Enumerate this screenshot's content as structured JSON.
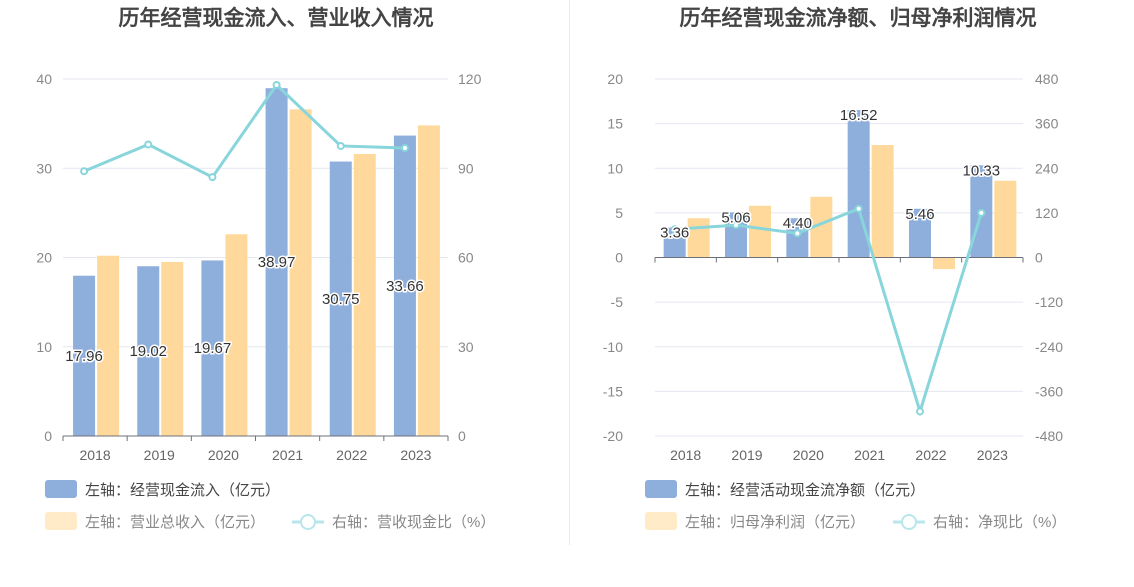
{
  "chart_data": [
    {
      "type": "bar",
      "title": "历年经营现金流入、营业收入情况",
      "categories": [
        "2018",
        "2019",
        "2020",
        "2021",
        "2022",
        "2023"
      ],
      "left_axis": {
        "min": 0,
        "max": 40,
        "ticks": [
          0,
          10,
          20,
          30,
          40
        ]
      },
      "right_axis": {
        "min": 0,
        "max": 120,
        "ticks": [
          0,
          30,
          60,
          90,
          120
        ]
      },
      "grid": true,
      "legend_position": "bottom-left",
      "series": [
        {
          "name": "左轴：经营现金流入（亿元）",
          "type": "bar",
          "axis": "left",
          "color": "#8eaedc",
          "values": [
            17.96,
            19.02,
            19.67,
            38.97,
            30.75,
            33.66
          ],
          "labels": [
            "17.96",
            "19.02",
            "19.67",
            "38.97",
            "30.75",
            "33.66"
          ]
        },
        {
          "name": "左轴：营业总收入（亿元）",
          "type": "bar",
          "axis": "left",
          "color": "#ffd99b",
          "values": [
            20.2,
            19.5,
            22.6,
            36.6,
            31.6,
            34.8
          ]
        },
        {
          "name": "右轴：营收现金比（%）",
          "type": "line",
          "axis": "right",
          "color": "#88d5dc",
          "values": [
            89,
            98,
            87,
            118,
            97.5,
            96.8
          ]
        }
      ]
    },
    {
      "type": "bar",
      "title": "历年经营现金流净额、归母净利润情况",
      "categories": [
        "2018",
        "2019",
        "2020",
        "2021",
        "2022",
        "2023"
      ],
      "left_axis": {
        "min": -20,
        "max": 20,
        "ticks": [
          -20,
          -15,
          -10,
          -5,
          0,
          5,
          10,
          15,
          20
        ]
      },
      "right_axis": {
        "min": -480,
        "max": 480,
        "ticks": [
          -480,
          -360,
          -240,
          -120,
          0,
          120,
          240,
          360,
          480
        ]
      },
      "grid": true,
      "legend_position": "bottom-left",
      "series": [
        {
          "name": "左轴：经营活动现金流净额（亿元）",
          "type": "bar",
          "axis": "left",
          "color": "#8eaedc",
          "values": [
            3.36,
            5.06,
            4.4,
            16.52,
            5.46,
            10.33
          ],
          "labels": [
            "3.36",
            "5.06",
            "4.40",
            "16.52",
            "5.46",
            "10.33"
          ]
        },
        {
          "name": "左轴：归母净利润（亿元）",
          "type": "bar",
          "axis": "left",
          "color": "#ffd99b",
          "values": [
            4.4,
            5.8,
            6.8,
            12.6,
            -1.3,
            8.6
          ]
        },
        {
          "name": "右轴：净现比（%）",
          "type": "line",
          "axis": "right",
          "color": "#88d5dc",
          "values": [
            76,
            87,
            65,
            131,
            -414,
            120
          ]
        }
      ]
    }
  ]
}
